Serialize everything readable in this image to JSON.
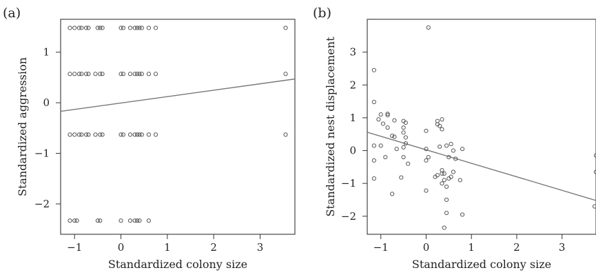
{
  "chart_data": [
    {
      "type": "scatter",
      "panel_label": "(a)",
      "xlabel": "Standardized colony size",
      "ylabel": "Standardized aggression",
      "xlim": [
        -1.3,
        3.75
      ],
      "ylim": [
        -2.6,
        1.65
      ],
      "xticks": [
        -1,
        0,
        1,
        2,
        3
      ],
      "yticks": [
        -2,
        -1,
        0,
        1
      ],
      "grid": false,
      "regression_line": {
        "x": [
          -1.3,
          3.75
        ],
        "y": [
          -0.17,
          0.47
        ]
      },
      "points": [
        [
          -1.1,
          1.48
        ],
        [
          -1.0,
          1.48
        ],
        [
          -0.9,
          1.48
        ],
        [
          -0.85,
          1.48
        ],
        [
          -0.75,
          1.48
        ],
        [
          -0.7,
          1.48
        ],
        [
          -0.5,
          1.48
        ],
        [
          -0.45,
          1.48
        ],
        [
          -0.4,
          1.48
        ],
        [
          0.0,
          1.48
        ],
        [
          0.05,
          1.48
        ],
        [
          0.2,
          1.48
        ],
        [
          0.3,
          1.48
        ],
        [
          0.35,
          1.48
        ],
        [
          0.4,
          1.48
        ],
        [
          0.45,
          1.48
        ],
        [
          0.6,
          1.48
        ],
        [
          0.75,
          1.48
        ],
        [
          3.55,
          1.48
        ],
        [
          -1.1,
          0.57
        ],
        [
          -1.0,
          0.57
        ],
        [
          -0.9,
          0.57
        ],
        [
          -0.85,
          0.57
        ],
        [
          -0.75,
          0.57
        ],
        [
          -0.7,
          0.57
        ],
        [
          -0.55,
          0.57
        ],
        [
          -0.45,
          0.57
        ],
        [
          -0.4,
          0.57
        ],
        [
          0.0,
          0.57
        ],
        [
          0.05,
          0.57
        ],
        [
          0.2,
          0.57
        ],
        [
          0.3,
          0.57
        ],
        [
          0.35,
          0.57
        ],
        [
          0.4,
          0.57
        ],
        [
          0.45,
          0.57
        ],
        [
          0.6,
          0.57
        ],
        [
          0.75,
          0.57
        ],
        [
          3.55,
          0.57
        ],
        [
          -1.1,
          -0.63
        ],
        [
          -1.0,
          -0.63
        ],
        [
          -0.9,
          -0.63
        ],
        [
          -0.85,
          -0.63
        ],
        [
          -0.75,
          -0.63
        ],
        [
          -0.7,
          -0.63
        ],
        [
          -0.55,
          -0.63
        ],
        [
          -0.45,
          -0.63
        ],
        [
          -0.4,
          -0.63
        ],
        [
          0.0,
          -0.63
        ],
        [
          0.05,
          -0.63
        ],
        [
          0.2,
          -0.63
        ],
        [
          0.3,
          -0.63
        ],
        [
          0.35,
          -0.63
        ],
        [
          0.4,
          -0.63
        ],
        [
          0.45,
          -0.63
        ],
        [
          0.6,
          -0.63
        ],
        [
          0.75,
          -0.63
        ],
        [
          3.55,
          -0.63
        ],
        [
          -1.1,
          -2.33
        ],
        [
          -1.0,
          -2.33
        ],
        [
          -0.95,
          -2.33
        ],
        [
          -0.5,
          -2.33
        ],
        [
          -0.45,
          -2.33
        ],
        [
          0.0,
          -2.33
        ],
        [
          0.2,
          -2.33
        ],
        [
          0.3,
          -2.33
        ],
        [
          0.35,
          -2.33
        ],
        [
          0.4,
          -2.33
        ],
        [
          0.6,
          -2.33
        ]
      ]
    },
    {
      "type": "scatter",
      "panel_label": "(b)",
      "xlabel": "Standardized colony size",
      "ylabel": "Standardized nest displacement",
      "xlim": [
        -1.3,
        3.75
      ],
      "ylim": [
        -2.55,
        4.0
      ],
      "xticks": [
        -1,
        0,
        1,
        2,
        3
      ],
      "yticks": [
        -2,
        -1,
        0,
        1,
        2,
        3
      ],
      "grid": false,
      "regression_line": {
        "x": [
          -1.3,
          3.75
        ],
        "y": [
          0.56,
          -1.52
        ]
      },
      "points": [
        [
          -1.15,
          2.45
        ],
        [
          -1.15,
          1.48
        ],
        [
          -1.0,
          1.1
        ],
        [
          -1.05,
          0.95
        ],
        [
          -0.85,
          1.12
        ],
        [
          -0.85,
          1.08
        ],
        [
          -1.15,
          0.15
        ],
        [
          -1.15,
          -0.3
        ],
        [
          -1.15,
          -0.85
        ],
        [
          -1.0,
          0.15
        ],
        [
          -0.95,
          0.82
        ],
        [
          -0.9,
          -0.2
        ],
        [
          -0.85,
          0.7
        ],
        [
          -0.75,
          0.45
        ],
        [
          -0.7,
          0.42
        ],
        [
          -0.7,
          0.92
        ],
        [
          -0.75,
          -1.32
        ],
        [
          -0.65,
          0.05
        ],
        [
          -0.5,
          0.9
        ],
        [
          -0.5,
          0.7
        ],
        [
          -0.5,
          0.55
        ],
        [
          -0.45,
          0.85
        ],
        [
          -0.45,
          0.22
        ],
        [
          -0.5,
          0.1
        ],
        [
          -0.5,
          -0.2
        ],
        [
          -0.4,
          -0.4
        ],
        [
          -0.55,
          -0.82
        ],
        [
          -0.45,
          0.4
        ],
        [
          0.05,
          3.75
        ],
        [
          0.0,
          0.6
        ],
        [
          0.0,
          0.05
        ],
        [
          0.05,
          -0.2
        ],
        [
          0.0,
          -0.3
        ],
        [
          0.0,
          -1.22
        ],
        [
          0.25,
          0.8
        ],
        [
          0.25,
          0.9
        ],
        [
          0.3,
          0.75
        ],
        [
          0.35,
          0.95
        ],
        [
          0.35,
          0.65
        ],
        [
          0.3,
          0.12
        ],
        [
          0.35,
          -0.6
        ],
        [
          0.4,
          -0.7
        ],
        [
          0.4,
          -0.9
        ],
        [
          0.35,
          -1.0
        ],
        [
          0.45,
          -1.1
        ],
        [
          0.45,
          -1.5
        ],
        [
          0.45,
          -1.9
        ],
        [
          0.4,
          -2.35
        ],
        [
          0.5,
          -0.85
        ],
        [
          0.5,
          -0.2
        ],
        [
          0.45,
          0.15
        ],
        [
          0.55,
          0.2
        ],
        [
          0.6,
          0.0
        ],
        [
          0.65,
          -0.25
        ],
        [
          0.6,
          -0.65
        ],
        [
          0.55,
          -0.8
        ],
        [
          0.75,
          -0.9
        ],
        [
          0.8,
          0.05
        ],
        [
          0.8,
          -1.95
        ],
        [
          0.25,
          -0.75
        ],
        [
          0.2,
          -0.8
        ],
        [
          0.35,
          -0.7
        ],
        [
          3.75,
          -0.15
        ],
        [
          3.75,
          -0.65
        ],
        [
          3.72,
          -1.7
        ]
      ]
    }
  ]
}
